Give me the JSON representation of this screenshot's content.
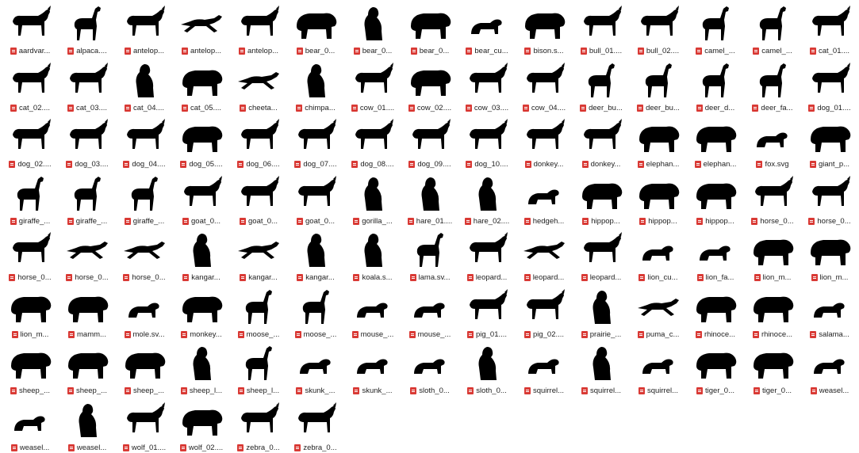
{
  "file_browser": {
    "items": [
      {
        "label": "aardvar...",
        "icon": "aardvark-silhouette-icon",
        "shape": "quad"
      },
      {
        "label": "alpaca....",
        "icon": "alpaca-silhouette-icon",
        "shape": "tall"
      },
      {
        "label": "antelop...",
        "icon": "antelope-silhouette-icon",
        "shape": "quad"
      },
      {
        "label": "antelop...",
        "icon": "antelope-silhouette-icon",
        "shape": "leap"
      },
      {
        "label": "antelop...",
        "icon": "antelope-silhouette-icon",
        "shape": "quad"
      },
      {
        "label": "bear_0...",
        "icon": "bear-silhouette-icon",
        "shape": "bulk"
      },
      {
        "label": "bear_0...",
        "icon": "bear-silhouette-icon",
        "shape": "sit"
      },
      {
        "label": "bear_0...",
        "icon": "bear-silhouette-icon",
        "shape": "bulk"
      },
      {
        "label": "bear_cu...",
        "icon": "bear-cub-silhouette-icon",
        "shape": "small"
      },
      {
        "label": "bison.s...",
        "icon": "bison-silhouette-icon",
        "shape": "bulk"
      },
      {
        "label": "bull_01....",
        "icon": "bull-silhouette-icon",
        "shape": "quad"
      },
      {
        "label": "bull_02....",
        "icon": "bull-silhouette-icon",
        "shape": "quad"
      },
      {
        "label": "camel_...",
        "icon": "camel-silhouette-icon",
        "shape": "tall"
      },
      {
        "label": "camel_...",
        "icon": "camel-silhouette-icon",
        "shape": "tall"
      },
      {
        "label": "cat_01....",
        "icon": "cat-silhouette-icon",
        "shape": "quad"
      },
      {
        "label": "cat_02....",
        "icon": "cat-silhouette-icon",
        "shape": "quad"
      },
      {
        "label": "cat_03....",
        "icon": "cat-silhouette-icon",
        "shape": "quad"
      },
      {
        "label": "cat_04....",
        "icon": "cat-silhouette-icon",
        "shape": "sit"
      },
      {
        "label": "cat_05....",
        "icon": "cat-silhouette-icon",
        "shape": "bulk"
      },
      {
        "label": "cheeta...",
        "icon": "cheetah-silhouette-icon",
        "shape": "leap"
      },
      {
        "label": "chimpa...",
        "icon": "chimpanzee-silhouette-icon",
        "shape": "sit"
      },
      {
        "label": "cow_01....",
        "icon": "cow-silhouette-icon",
        "shape": "quad"
      },
      {
        "label": "cow_02....",
        "icon": "cow-silhouette-icon",
        "shape": "bulk"
      },
      {
        "label": "cow_03....",
        "icon": "cow-silhouette-icon",
        "shape": "quad"
      },
      {
        "label": "cow_04....",
        "icon": "cow-silhouette-icon",
        "shape": "quad"
      },
      {
        "label": "deer_bu...",
        "icon": "deer-silhouette-icon",
        "shape": "tall"
      },
      {
        "label": "deer_bu...",
        "icon": "deer-silhouette-icon",
        "shape": "tall"
      },
      {
        "label": "deer_d...",
        "icon": "deer-silhouette-icon",
        "shape": "tall"
      },
      {
        "label": "deer_fa...",
        "icon": "deer-fawn-silhouette-icon",
        "shape": "tall"
      },
      {
        "label": "dog_01....",
        "icon": "dog-silhouette-icon",
        "shape": "quad"
      },
      {
        "label": "dog_02....",
        "icon": "dog-silhouette-icon",
        "shape": "quad"
      },
      {
        "label": "dog_03....",
        "icon": "dog-silhouette-icon",
        "shape": "quad"
      },
      {
        "label": "dog_04....",
        "icon": "dog-silhouette-icon",
        "shape": "quad"
      },
      {
        "label": "dog_05....",
        "icon": "dog-silhouette-icon",
        "shape": "bulk"
      },
      {
        "label": "dog_06....",
        "icon": "dog-silhouette-icon",
        "shape": "quad"
      },
      {
        "label": "dog_07....",
        "icon": "dog-silhouette-icon",
        "shape": "quad"
      },
      {
        "label": "dog_08....",
        "icon": "dog-silhouette-icon",
        "shape": "quad"
      },
      {
        "label": "dog_09....",
        "icon": "dog-silhouette-icon",
        "shape": "quad"
      },
      {
        "label": "dog_10....",
        "icon": "dog-silhouette-icon",
        "shape": "quad"
      },
      {
        "label": "donkey...",
        "icon": "donkey-silhouette-icon",
        "shape": "quad"
      },
      {
        "label": "donkey...",
        "icon": "donkey-silhouette-icon",
        "shape": "quad"
      },
      {
        "label": "elephan...",
        "icon": "elephant-silhouette-icon",
        "shape": "bulk"
      },
      {
        "label": "elephan...",
        "icon": "elephant-silhouette-icon",
        "shape": "bulk"
      },
      {
        "label": "fox.svg",
        "icon": "fox-silhouette-icon",
        "shape": "small"
      },
      {
        "label": "giant_p...",
        "icon": "giant-panda-silhouette-icon",
        "shape": "bulk"
      },
      {
        "label": "giraffe_...",
        "icon": "giraffe-silhouette-icon",
        "shape": "tall"
      },
      {
        "label": "giraffe_...",
        "icon": "giraffe-silhouette-icon",
        "shape": "tall"
      },
      {
        "label": "giraffe_...",
        "icon": "giraffe-silhouette-icon",
        "shape": "tall"
      },
      {
        "label": "goat_0...",
        "icon": "goat-silhouette-icon",
        "shape": "quad"
      },
      {
        "label": "goat_0...",
        "icon": "goat-silhouette-icon",
        "shape": "quad"
      },
      {
        "label": "goat_0...",
        "icon": "goat-silhouette-icon",
        "shape": "quad"
      },
      {
        "label": "gorilla_...",
        "icon": "gorilla-silhouette-icon",
        "shape": "sit"
      },
      {
        "label": "hare_01....",
        "icon": "hare-silhouette-icon",
        "shape": "sit"
      },
      {
        "label": "hare_02....",
        "icon": "hare-silhouette-icon",
        "shape": "sit"
      },
      {
        "label": "hedgeh...",
        "icon": "hedgehog-silhouette-icon",
        "shape": "small"
      },
      {
        "label": "hippop...",
        "icon": "hippopotamus-silhouette-icon",
        "shape": "bulk"
      },
      {
        "label": "hippop...",
        "icon": "hippopotamus-silhouette-icon",
        "shape": "bulk"
      },
      {
        "label": "hippop...",
        "icon": "hippopotamus-silhouette-icon",
        "shape": "bulk"
      },
      {
        "label": "horse_0...",
        "icon": "horse-silhouette-icon",
        "shape": "quad"
      },
      {
        "label": "horse_0...",
        "icon": "horse-silhouette-icon",
        "shape": "quad"
      },
      {
        "label": "horse_0...",
        "icon": "horse-silhouette-icon",
        "shape": "quad"
      },
      {
        "label": "horse_0...",
        "icon": "horse-silhouette-icon",
        "shape": "leap"
      },
      {
        "label": "horse_0...",
        "icon": "horse-silhouette-icon",
        "shape": "leap"
      },
      {
        "label": "kangar...",
        "icon": "kangaroo-silhouette-icon",
        "shape": "sit"
      },
      {
        "label": "kangar...",
        "icon": "kangaroo-silhouette-icon",
        "shape": "leap"
      },
      {
        "label": "kangar...",
        "icon": "kangaroo-silhouette-icon",
        "shape": "sit"
      },
      {
        "label": "koala.s...",
        "icon": "koala-silhouette-icon",
        "shape": "sit"
      },
      {
        "label": "lama.sv...",
        "icon": "llama-silhouette-icon",
        "shape": "tall"
      },
      {
        "label": "leopard...",
        "icon": "leopard-silhouette-icon",
        "shape": "quad"
      },
      {
        "label": "leopard...",
        "icon": "leopard-silhouette-icon",
        "shape": "leap"
      },
      {
        "label": "leopard...",
        "icon": "leopard-silhouette-icon",
        "shape": "quad"
      },
      {
        "label": "lion_cu...",
        "icon": "lion-cub-silhouette-icon",
        "shape": "small"
      },
      {
        "label": "lion_fa...",
        "icon": "lion-family-silhouette-icon",
        "shape": "small"
      },
      {
        "label": "lion_m...",
        "icon": "lion-silhouette-icon",
        "shape": "bulk"
      },
      {
        "label": "lion_m...",
        "icon": "lion-silhouette-icon",
        "shape": "bulk"
      },
      {
        "label": "lion_m...",
        "icon": "lion-silhouette-icon",
        "shape": "bulk"
      },
      {
        "label": "mamm...",
        "icon": "mammoth-silhouette-icon",
        "shape": "bulk"
      },
      {
        "label": "mole.sv...",
        "icon": "mole-silhouette-icon",
        "shape": "small"
      },
      {
        "label": "monkey...",
        "icon": "monkey-silhouette-icon",
        "shape": "bulk"
      },
      {
        "label": "moose_...",
        "icon": "moose-silhouette-icon",
        "shape": "tall"
      },
      {
        "label": "moose_...",
        "icon": "moose-silhouette-icon",
        "shape": "tall"
      },
      {
        "label": "mouse_...",
        "icon": "mouse-silhouette-icon",
        "shape": "small"
      },
      {
        "label": "mouse_...",
        "icon": "mouse-silhouette-icon",
        "shape": "small"
      },
      {
        "label": "pig_01....",
        "icon": "pig-silhouette-icon",
        "shape": "quad"
      },
      {
        "label": "pig_02....",
        "icon": "pig-silhouette-icon",
        "shape": "quad"
      },
      {
        "label": "prairie_...",
        "icon": "prairie-dog-silhouette-icon",
        "shape": "sit"
      },
      {
        "label": "puma_c...",
        "icon": "puma-silhouette-icon",
        "shape": "leap"
      },
      {
        "label": "rhinoce...",
        "icon": "rhinoceros-silhouette-icon",
        "shape": "bulk"
      },
      {
        "label": "rhinoce...",
        "icon": "rhinoceros-silhouette-icon",
        "shape": "bulk"
      },
      {
        "label": "salama...",
        "icon": "salamander-silhouette-icon",
        "shape": "small"
      },
      {
        "label": "sheep_...",
        "icon": "sheep-silhouette-icon",
        "shape": "bulk"
      },
      {
        "label": "sheep_...",
        "icon": "sheep-silhouette-icon",
        "shape": "bulk"
      },
      {
        "label": "sheep_...",
        "icon": "sheep-silhouette-icon",
        "shape": "bulk"
      },
      {
        "label": "sheep_l...",
        "icon": "sheep-lamb-silhouette-icon",
        "shape": "sit"
      },
      {
        "label": "sheep_l...",
        "icon": "sheep-lamb-silhouette-icon",
        "shape": "tall"
      },
      {
        "label": "skunk_...",
        "icon": "skunk-silhouette-icon",
        "shape": "small"
      },
      {
        "label": "skunk_...",
        "icon": "skunk-silhouette-icon",
        "shape": "small"
      },
      {
        "label": "sloth_0...",
        "icon": "sloth-silhouette-icon",
        "shape": "small"
      },
      {
        "label": "sloth_0...",
        "icon": "sloth-silhouette-icon",
        "shape": "sit"
      },
      {
        "label": "squirrel...",
        "icon": "squirrel-silhouette-icon",
        "shape": "small"
      },
      {
        "label": "squirrel...",
        "icon": "squirrel-silhouette-icon",
        "shape": "sit"
      },
      {
        "label": "squirrel...",
        "icon": "squirrel-monkey-silhouette-icon",
        "shape": "small"
      },
      {
        "label": "tiger_0...",
        "icon": "tiger-silhouette-icon",
        "shape": "bulk"
      },
      {
        "label": "tiger_0...",
        "icon": "tiger-silhouette-icon",
        "shape": "bulk"
      },
      {
        "label": "weasel...",
        "icon": "weasel-silhouette-icon",
        "shape": "small"
      },
      {
        "label": "weasel...",
        "icon": "weasel-silhouette-icon",
        "shape": "small"
      },
      {
        "label": "weasel...",
        "icon": "weasel-silhouette-icon",
        "shape": "sit"
      },
      {
        "label": "wolf_01....",
        "icon": "wolf-silhouette-icon",
        "shape": "quad"
      },
      {
        "label": "wolf_02....",
        "icon": "wolf-silhouette-icon",
        "shape": "bulk"
      },
      {
        "label": "zebra_0...",
        "icon": "zebra-silhouette-icon",
        "shape": "quad"
      },
      {
        "label": "zebra_0...",
        "icon": "zebra-silhouette-icon",
        "shape": "quad"
      }
    ]
  },
  "colors": {
    "background": "#ffffff",
    "silhouette": "#000000",
    "file_type_icon": "#d93a35",
    "caption_text": "#222222"
  }
}
